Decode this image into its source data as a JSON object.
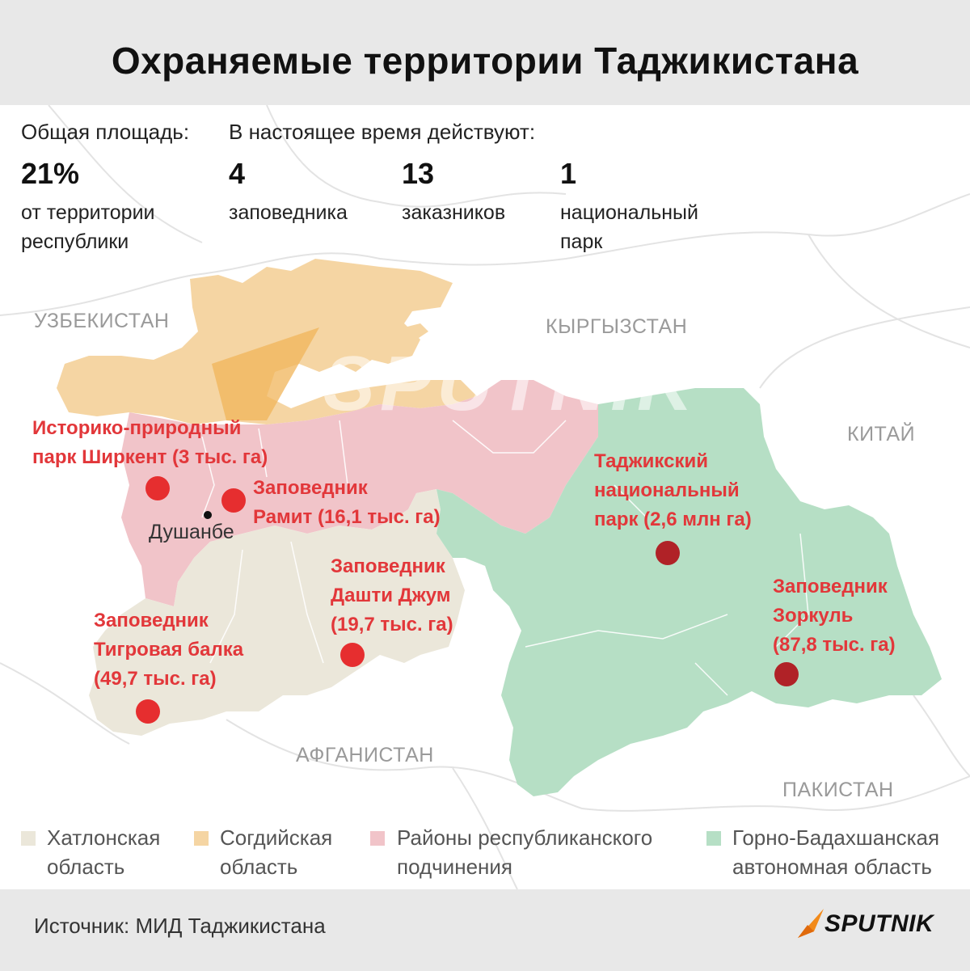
{
  "title": "Охраняемые территории Таджикистана",
  "stats": {
    "area_label": "Общая площадь:",
    "area_value": "21%",
    "area_desc_1": "от территории",
    "area_desc_2": "республики",
    "active_label": "В настоящее время действуют:",
    "reserves_count": "4",
    "reserves_label": "заповедника",
    "sanctuaries_count": "13",
    "sanctuaries_label": "заказников",
    "parks_count": "1",
    "parks_label_1": "национальный",
    "parks_label_2": "парк"
  },
  "countries": {
    "uzbekistan": "УЗБЕКИСТАН",
    "kyrgyzstan": "КЫРГЫЗСТАН",
    "china": "КИТАЙ",
    "afghanistan": "АФГАНИСТАН",
    "pakistan": "ПАКИСТАН"
  },
  "city": "Душанбе",
  "areas": [
    {
      "line1": "Историко-природный",
      "line2": "парк Ширкент (3 тыс. га)"
    },
    {
      "line1": "Заповедник",
      "line2": "Рамит (16,1 тыс. га)"
    },
    {
      "line1": "Таджикский",
      "line2": "национальный",
      "line3": "парк (2,6 млн га)"
    },
    {
      "line1": "Заповедник",
      "line2": "Дашти Джум",
      "line3": "(19,7 тыс. га)"
    },
    {
      "line1": "Заповедник",
      "line2": "Тигровая балка",
      "line3": "(49,7 тыс. га)"
    },
    {
      "line1": "Заповедник",
      "line2": "Зоркуль",
      "line3": "(87,8 тыс. га)"
    }
  ],
  "legend": [
    {
      "line1": "Хатлонская",
      "line2": "область",
      "color": "#ebe7da"
    },
    {
      "line1": "Согдийская",
      "line2": "область",
      "color": "#f5d5a3"
    },
    {
      "line1": "Районы республиканского",
      "line2": "подчинения",
      "color": "#f1c4c9"
    },
    {
      "line1": "Горно-Бадахшанская",
      "line2": "автономная область",
      "color": "#b6dfc5"
    }
  ],
  "colors": {
    "khatlon": "#ebe7da",
    "sughd": "#f5d5a3",
    "rrs": "#f1c4c9",
    "gbao": "#b6dfc5",
    "marker": "#e62e2f",
    "marker_dark": "#b02227",
    "label": "#e2373a"
  },
  "source": "Источник: МИД Таджикистана",
  "brand": "SPUTNIK",
  "watermark": "SPUTNIK"
}
